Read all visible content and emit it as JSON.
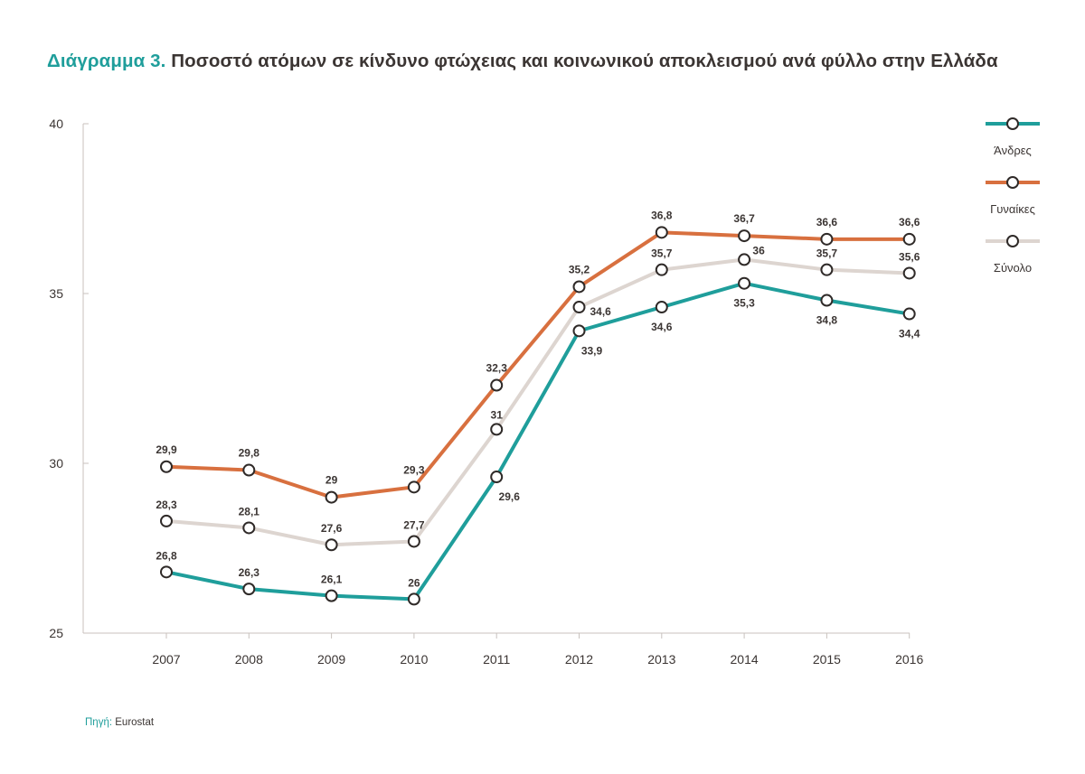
{
  "title": {
    "prefix": "Διάγραμμα 3.",
    "text": "Ποσοστό ατόμων σε κίνδυνο φτώχειας και κοινωνικού αποκλεισμού ανά φύλλο στην Ελλάδα"
  },
  "source": {
    "label": "Πηγή:",
    "text": "Eurostat"
  },
  "chart_data": {
    "type": "line",
    "title": "Ποσοστό ατόμων σε κίνδυνο φτώχειας και κοινωνικού αποκλεισμού ανά φύλλο στην Ελλάδα",
    "xlabel": "",
    "ylabel": "",
    "categories": [
      "2007",
      "2008",
      "2009",
      "2010",
      "2011",
      "2012",
      "2013",
      "2014",
      "2015",
      "2016"
    ],
    "ylim": [
      25,
      40
    ],
    "yticks": [
      25,
      30,
      35,
      40
    ],
    "grid": false,
    "legend_position": "right",
    "series": [
      {
        "name": "Άνδρες",
        "color": "#1f9e9b",
        "values": [
          26.8,
          26.3,
          26.1,
          26,
          29.6,
          33.9,
          34.6,
          35.3,
          34.8,
          34.4
        ],
        "labels": [
          "26,8",
          "26,3",
          "26,1",
          "26",
          "29,6",
          "33,9",
          "34,6",
          "35,3",
          "34,8",
          "34,4"
        ]
      },
      {
        "name": "Γυναίκες",
        "color": "#d8703f",
        "values": [
          29.9,
          29.8,
          29,
          29.3,
          32.3,
          35.2,
          36.8,
          36.7,
          36.6,
          36.6
        ],
        "labels": [
          "29,9",
          "29,8",
          "29",
          "29,3",
          "32,3",
          "35,2",
          "36,8",
          "36,7",
          "36,6",
          "36,6"
        ]
      },
      {
        "name": "Σύνολο",
        "color": "#ddd5d0",
        "values": [
          28.3,
          28.1,
          27.6,
          27.7,
          31,
          34.6,
          35.7,
          36,
          35.7,
          35.6
        ],
        "labels": [
          "28,3",
          "28,1",
          "27,6",
          "27,7",
          "31",
          "34,6",
          "35,7",
          "36",
          "35,7",
          "35,6"
        ]
      }
    ]
  }
}
